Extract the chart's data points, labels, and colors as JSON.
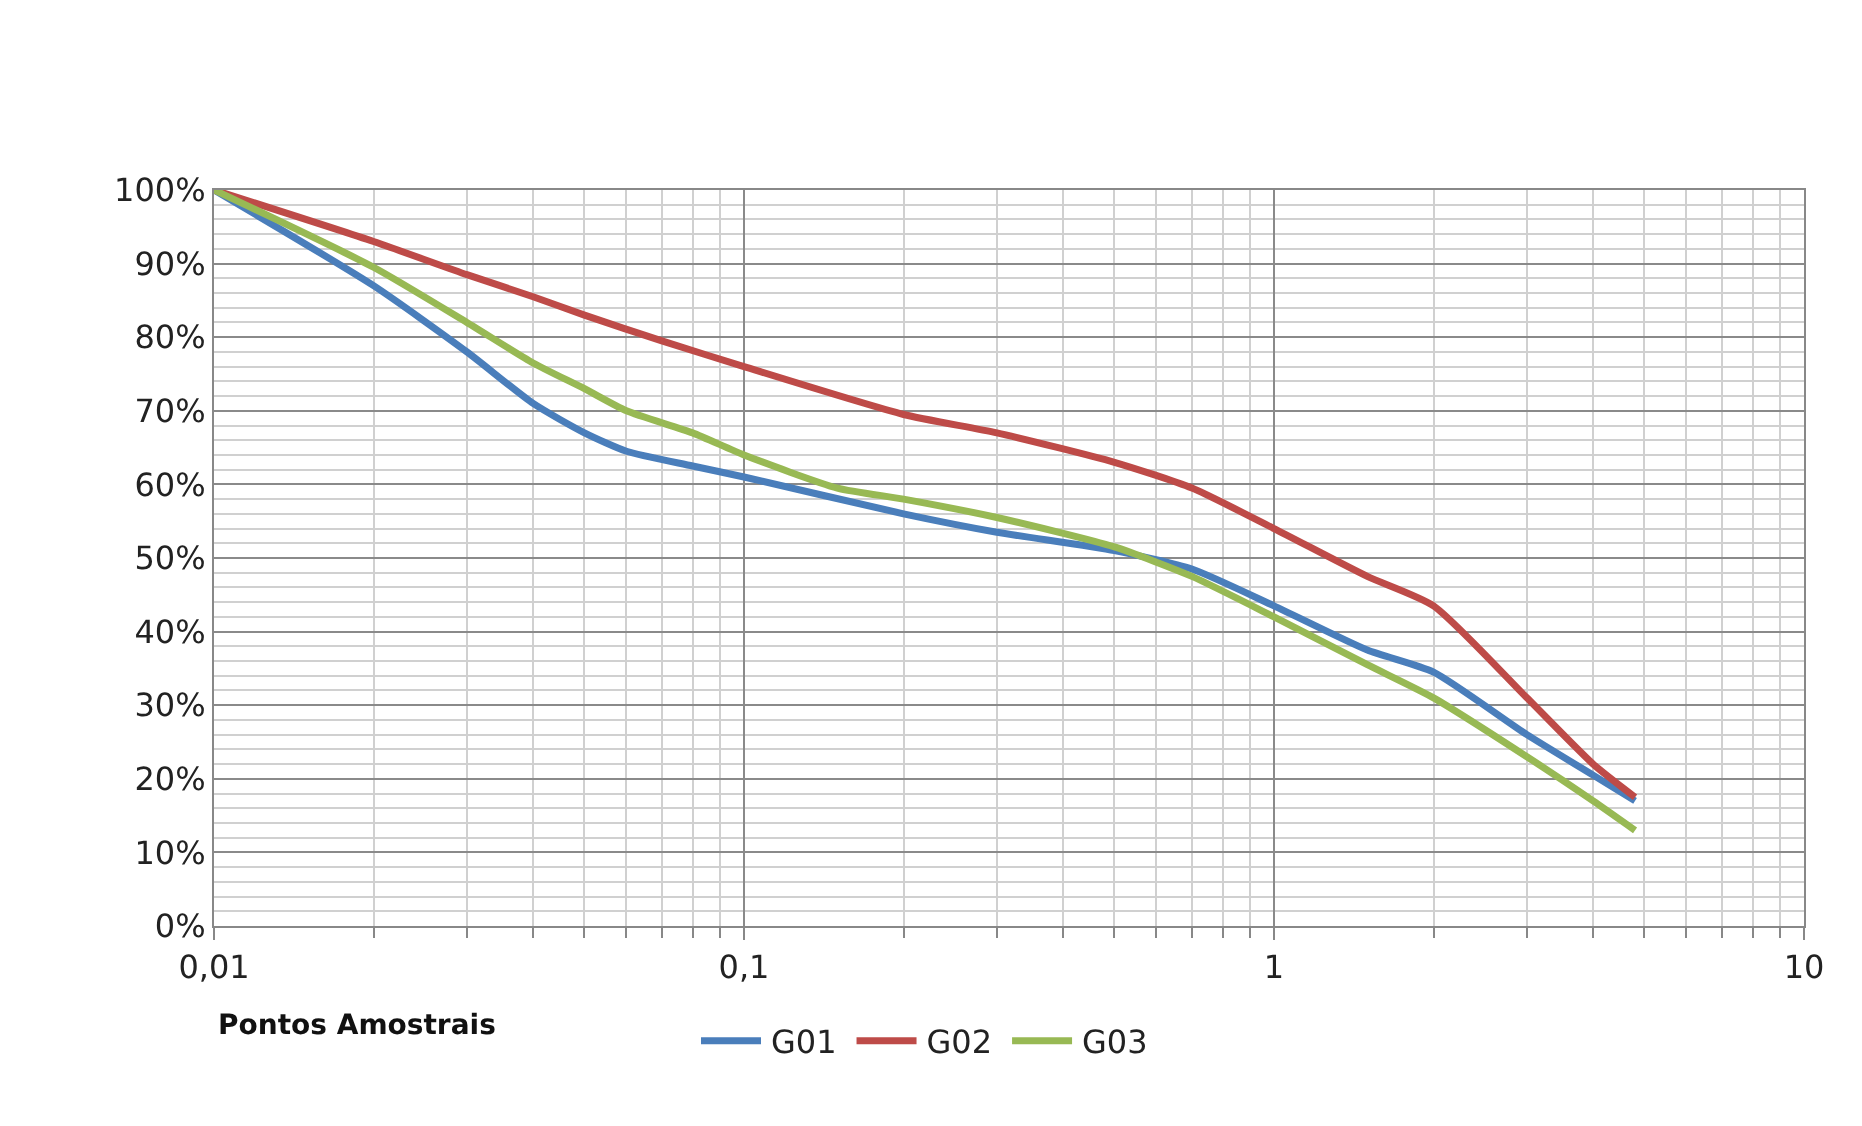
{
  "chart_data": {
    "type": "line",
    "xlabel": "Pontos Amostrais",
    "series": [
      {
        "name": "G01",
        "color": "#4a7ebb",
        "x": [
          0.01,
          0.02,
          0.03,
          0.04,
          0.05,
          0.06,
          0.08,
          0.1,
          0.2,
          0.3,
          0.5,
          0.7,
          1,
          1.5,
          2,
          3,
          4,
          4.8
        ],
        "values": [
          100,
          87,
          78,
          71,
          67,
          64.5,
          62.5,
          61,
          56,
          53.5,
          51,
          48.5,
          43.5,
          37.5,
          34.5,
          26,
          20.5,
          17
        ]
      },
      {
        "name": "G02",
        "color": "#be4b48",
        "x": [
          0.01,
          0.02,
          0.03,
          0.04,
          0.05,
          0.07,
          0.1,
          0.2,
          0.3,
          0.5,
          0.7,
          1,
          1.5,
          2,
          3,
          4,
          4.8
        ],
        "values": [
          100,
          93,
          88.5,
          85.5,
          83,
          79.5,
          76,
          69.5,
          67,
          63,
          59.5,
          54,
          47.5,
          43.5,
          31,
          22,
          17.5
        ]
      },
      {
        "name": "G03",
        "color": "#98b954",
        "x": [
          0.01,
          0.02,
          0.03,
          0.04,
          0.05,
          0.06,
          0.08,
          0.1,
          0.15,
          0.2,
          0.3,
          0.5,
          0.7,
          1,
          1.5,
          2,
          3,
          4,
          4.8
        ],
        "values": [
          100,
          89.5,
          82,
          76.5,
          73,
          70,
          67,
          64,
          59.5,
          58,
          55.5,
          51.5,
          47.5,
          42,
          35.5,
          31,
          23,
          17,
          13
        ]
      }
    ],
    "log": "x",
    "xlim": [
      0.01,
      10
    ],
    "xticks": [
      {
        "value": 0.01,
        "label": "0,01"
      },
      {
        "value": 0.1,
        "label": "0,1"
      },
      1,
      10
    ],
    "ylim": [
      0,
      100
    ],
    "yticks": [
      {
        "value": 0,
        "label": "0%"
      },
      {
        "value": 10,
        "label": "10%"
      },
      {
        "value": 20,
        "label": "20%"
      },
      {
        "value": 30,
        "label": "30%"
      },
      {
        "value": 40,
        "label": "40%"
      },
      {
        "value": 50,
        "label": "50%"
      },
      {
        "value": 60,
        "label": "60%"
      },
      {
        "value": 70,
        "label": "70%"
      },
      {
        "value": 80,
        "label": "80%"
      },
      {
        "value": 90,
        "label": "90%"
      },
      {
        "value": 100,
        "label": "100%"
      }
    ],
    "grid": true,
    "legend": "bottom",
    "marker": "none",
    "line_style": "solid"
  }
}
